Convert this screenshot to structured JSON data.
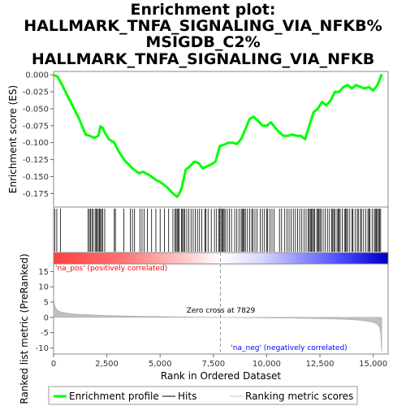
{
  "chart_data": {
    "type": "line",
    "title": [
      "Enrichment plot:",
      "HALLMARK_TNFA_SIGNALING_VIA_NFKB%",
      "MSIGDB_C2%",
      "HALLMARK_TNFA_SIGNALING_VIA_NFKB"
    ],
    "top_panel": {
      "ylabel": "Enrichment score (ES)",
      "ylim": [
        -0.195,
        0.005
      ],
      "yticks": [
        0.0,
        -0.025,
        -0.05,
        -0.075,
        -0.1,
        -0.125,
        -0.15,
        -0.175
      ],
      "ytick_labels": [
        "0.000",
        "-0.025",
        "-0.050",
        "-0.075",
        "-0.100",
        "-0.125",
        "-0.150",
        "-0.175"
      ],
      "series": [
        {
          "name": "Enrichment profile",
          "color": "#00ff00",
          "x": [
            0,
            200,
            400,
            800,
            1200,
            1500,
            1700,
            1900,
            2100,
            2200,
            2300,
            2400,
            2600,
            2850,
            3000,
            3300,
            3700,
            4000,
            4200,
            4500,
            4800,
            5000,
            5300,
            5600,
            5800,
            5900,
            6000,
            6200,
            6400,
            6600,
            6800,
            7000,
            7200,
            7400,
            7600,
            7800,
            8000,
            8200,
            8400,
            8600,
            8800,
            9000,
            9200,
            9400,
            9600,
            9800,
            10000,
            10200,
            10400,
            10600,
            10800,
            11000,
            11200,
            11400,
            11600,
            11800,
            12000,
            12200,
            12400,
            12600,
            12800,
            13000,
            13200,
            13400,
            13600,
            13800,
            14000,
            14200,
            14400,
            14600,
            14800,
            15000,
            15200,
            15400
          ],
          "y": [
            0.0,
            -0.003,
            -0.015,
            -0.04,
            -0.065,
            -0.088,
            -0.09,
            -0.093,
            -0.09,
            -0.076,
            -0.078,
            -0.085,
            -0.095,
            -0.1,
            -0.11,
            -0.125,
            -0.138,
            -0.145,
            -0.143,
            -0.148,
            -0.155,
            -0.158,
            -0.165,
            -0.175,
            -0.18,
            -0.175,
            -0.168,
            -0.14,
            -0.135,
            -0.128,
            -0.13,
            -0.138,
            -0.135,
            -0.132,
            -0.128,
            -0.105,
            -0.103,
            -0.1,
            -0.1,
            -0.102,
            -0.095,
            -0.08,
            -0.065,
            -0.062,
            -0.068,
            -0.075,
            -0.075,
            -0.07,
            -0.078,
            -0.085,
            -0.09,
            -0.09,
            -0.088,
            -0.09,
            -0.09,
            -0.095,
            -0.075,
            -0.055,
            -0.05,
            -0.04,
            -0.045,
            -0.038,
            -0.025,
            -0.025,
            -0.018,
            -0.015,
            -0.02,
            -0.015,
            -0.018,
            -0.02,
            -0.018,
            -0.023,
            -0.015,
            0.001
          ]
        }
      ]
    },
    "hits_panel": {
      "name": "Hits",
      "positions": [
        50,
        150,
        320,
        1620,
        1680,
        1730,
        1800,
        1860,
        1950,
        2000,
        2050,
        2100,
        2150,
        2200,
        2250,
        2300,
        2400,
        2850,
        2900,
        3300,
        3600,
        3700,
        3800,
        4050,
        4150,
        4250,
        4400,
        4600,
        4800,
        5000,
        5200,
        5400,
        5600,
        5700,
        5750,
        5800,
        5850,
        5900,
        6000,
        6050,
        6100,
        6150,
        6250,
        6350,
        6450,
        6550,
        6650,
        6750,
        6850,
        6950,
        7100,
        7150,
        7250,
        7400,
        7550,
        7650,
        7750,
        7800,
        7850,
        7900,
        7950,
        8000,
        8050,
        8150,
        8250,
        8350,
        8500,
        8600,
        8700,
        8800,
        8850,
        8900,
        8950,
        9000,
        9100,
        9200,
        9300,
        9350,
        9450,
        9550,
        9700,
        9800,
        9900,
        10000,
        10050,
        10150,
        10250,
        10350,
        10600,
        10700,
        10850,
        10950,
        11050,
        11150,
        11250,
        11350,
        11450,
        11550,
        11650,
        11750,
        11850,
        11950,
        12000,
        12050,
        12100,
        12150,
        12200,
        12250,
        12350,
        12400,
        12450,
        12500,
        12550,
        12650,
        12750,
        12850,
        12950,
        13050,
        13100,
        13150,
        13200,
        13300,
        13350,
        13400,
        13450,
        13550,
        13650,
        13700,
        13750,
        13800,
        13900,
        14000,
        14050,
        14150,
        14250,
        14300,
        14400,
        14450,
        14550,
        14650,
        14750,
        14800,
        14850,
        14950,
        15050,
        15100,
        15150,
        15200,
        15250,
        15300,
        15350
      ]
    },
    "metric_panel": {
      "ylabel": "Ranked list metric (PreRanked)",
      "ylim": [
        -12,
        17.5
      ],
      "yticks": [
        15,
        10,
        5,
        0,
        -5,
        -10
      ],
      "ytick_labels": [
        "15",
        "10",
        "5",
        "0",
        "-5",
        "-10"
      ],
      "name": "Ranking metric scores",
      "x": [
        0,
        30,
        80,
        150,
        300,
        500,
        800,
        1200,
        1800,
        2500,
        3500,
        4500,
        5500,
        6500,
        7500,
        7829,
        8500,
        9500,
        10500,
        11500,
        12500,
        13500,
        14200,
        14700,
        15000,
        15200,
        15300,
        15350,
        15400
      ],
      "y": [
        7.5,
        4.5,
        3.5,
        2.6,
        1.9,
        1.5,
        1.2,
        1.0,
        0.8,
        0.6,
        0.45,
        0.3,
        0.2,
        0.1,
        0.03,
        0.0,
        -0.05,
        -0.12,
        -0.2,
        -0.3,
        -0.42,
        -0.6,
        -0.85,
        -1.2,
        -1.6,
        -2.3,
        -3.2,
        -5.0,
        -11.5
      ],
      "zero_cross_label": "Zero cross at 7829",
      "zero_cross": 7829,
      "pos_label": "'na_pos' (positively correlated)",
      "neg_label": "'na_neg' (negatively correlated)"
    },
    "x_axis": {
      "label": "Rank in Ordered Dataset",
      "xlim": [
        0,
        15700
      ],
      "ticks": [
        0,
        2500,
        5000,
        7500,
        10000,
        12500,
        15000
      ],
      "tick_labels": [
        "0",
        "2,500",
        "5,000",
        "7,500",
        "10,000",
        "12,500",
        "15,000"
      ]
    },
    "legend": [
      {
        "label": "Enrichment profile",
        "color": "#00ff00"
      },
      {
        "label": "Hits",
        "color": "#000000"
      },
      {
        "label": "Ranking metric scores",
        "color": "#c0c0c0"
      }
    ],
    "colors": {
      "pos": "#ff0000",
      "neg": "#0000ff",
      "profile": "#00ff00",
      "metric": "#c0c0c0"
    },
    "grid": false
  }
}
